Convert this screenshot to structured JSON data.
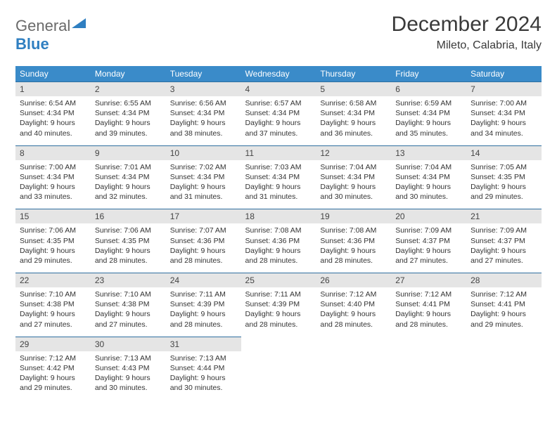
{
  "brand": {
    "part1": "General",
    "part2": "Blue"
  },
  "title": "December 2024",
  "location": "Mileto, Calabria, Italy",
  "colors": {
    "header_bg": "#3a8bc9",
    "daynum_bg": "#e5e5e5",
    "row_border": "#2f6fa0",
    "logo_gray": "#6a6a6a",
    "logo_blue": "#2f7fc1"
  },
  "dayNames": [
    "Sunday",
    "Monday",
    "Tuesday",
    "Wednesday",
    "Thursday",
    "Friday",
    "Saturday"
  ],
  "weeks": [
    [
      {
        "n": "1",
        "sr": "6:54 AM",
        "ss": "4:34 PM",
        "dl": "9 hours and 40 minutes."
      },
      {
        "n": "2",
        "sr": "6:55 AM",
        "ss": "4:34 PM",
        "dl": "9 hours and 39 minutes."
      },
      {
        "n": "3",
        "sr": "6:56 AM",
        "ss": "4:34 PM",
        "dl": "9 hours and 38 minutes."
      },
      {
        "n": "4",
        "sr": "6:57 AM",
        "ss": "4:34 PM",
        "dl": "9 hours and 37 minutes."
      },
      {
        "n": "5",
        "sr": "6:58 AM",
        "ss": "4:34 PM",
        "dl": "9 hours and 36 minutes."
      },
      {
        "n": "6",
        "sr": "6:59 AM",
        "ss": "4:34 PM",
        "dl": "9 hours and 35 minutes."
      },
      {
        "n": "7",
        "sr": "7:00 AM",
        "ss": "4:34 PM",
        "dl": "9 hours and 34 minutes."
      }
    ],
    [
      {
        "n": "8",
        "sr": "7:00 AM",
        "ss": "4:34 PM",
        "dl": "9 hours and 33 minutes."
      },
      {
        "n": "9",
        "sr": "7:01 AM",
        "ss": "4:34 PM",
        "dl": "9 hours and 32 minutes."
      },
      {
        "n": "10",
        "sr": "7:02 AM",
        "ss": "4:34 PM",
        "dl": "9 hours and 31 minutes."
      },
      {
        "n": "11",
        "sr": "7:03 AM",
        "ss": "4:34 PM",
        "dl": "9 hours and 31 minutes."
      },
      {
        "n": "12",
        "sr": "7:04 AM",
        "ss": "4:34 PM",
        "dl": "9 hours and 30 minutes."
      },
      {
        "n": "13",
        "sr": "7:04 AM",
        "ss": "4:34 PM",
        "dl": "9 hours and 30 minutes."
      },
      {
        "n": "14",
        "sr": "7:05 AM",
        "ss": "4:35 PM",
        "dl": "9 hours and 29 minutes."
      }
    ],
    [
      {
        "n": "15",
        "sr": "7:06 AM",
        "ss": "4:35 PM",
        "dl": "9 hours and 29 minutes."
      },
      {
        "n": "16",
        "sr": "7:06 AM",
        "ss": "4:35 PM",
        "dl": "9 hours and 28 minutes."
      },
      {
        "n": "17",
        "sr": "7:07 AM",
        "ss": "4:36 PM",
        "dl": "9 hours and 28 minutes."
      },
      {
        "n": "18",
        "sr": "7:08 AM",
        "ss": "4:36 PM",
        "dl": "9 hours and 28 minutes."
      },
      {
        "n": "19",
        "sr": "7:08 AM",
        "ss": "4:36 PM",
        "dl": "9 hours and 28 minutes."
      },
      {
        "n": "20",
        "sr": "7:09 AM",
        "ss": "4:37 PM",
        "dl": "9 hours and 27 minutes."
      },
      {
        "n": "21",
        "sr": "7:09 AM",
        "ss": "4:37 PM",
        "dl": "9 hours and 27 minutes."
      }
    ],
    [
      {
        "n": "22",
        "sr": "7:10 AM",
        "ss": "4:38 PM",
        "dl": "9 hours and 27 minutes."
      },
      {
        "n": "23",
        "sr": "7:10 AM",
        "ss": "4:38 PM",
        "dl": "9 hours and 27 minutes."
      },
      {
        "n": "24",
        "sr": "7:11 AM",
        "ss": "4:39 PM",
        "dl": "9 hours and 28 minutes."
      },
      {
        "n": "25",
        "sr": "7:11 AM",
        "ss": "4:39 PM",
        "dl": "9 hours and 28 minutes."
      },
      {
        "n": "26",
        "sr": "7:12 AM",
        "ss": "4:40 PM",
        "dl": "9 hours and 28 minutes."
      },
      {
        "n": "27",
        "sr": "7:12 AM",
        "ss": "4:41 PM",
        "dl": "9 hours and 28 minutes."
      },
      {
        "n": "28",
        "sr": "7:12 AM",
        "ss": "4:41 PM",
        "dl": "9 hours and 29 minutes."
      }
    ],
    [
      {
        "n": "29",
        "sr": "7:12 AM",
        "ss": "4:42 PM",
        "dl": "9 hours and 29 minutes."
      },
      {
        "n": "30",
        "sr": "7:13 AM",
        "ss": "4:43 PM",
        "dl": "9 hours and 30 minutes."
      },
      {
        "n": "31",
        "sr": "7:13 AM",
        "ss": "4:44 PM",
        "dl": "9 hours and 30 minutes."
      },
      null,
      null,
      null,
      null
    ]
  ],
  "labels": {
    "sunrise": "Sunrise:",
    "sunset": "Sunset:",
    "daylight": "Daylight:"
  }
}
